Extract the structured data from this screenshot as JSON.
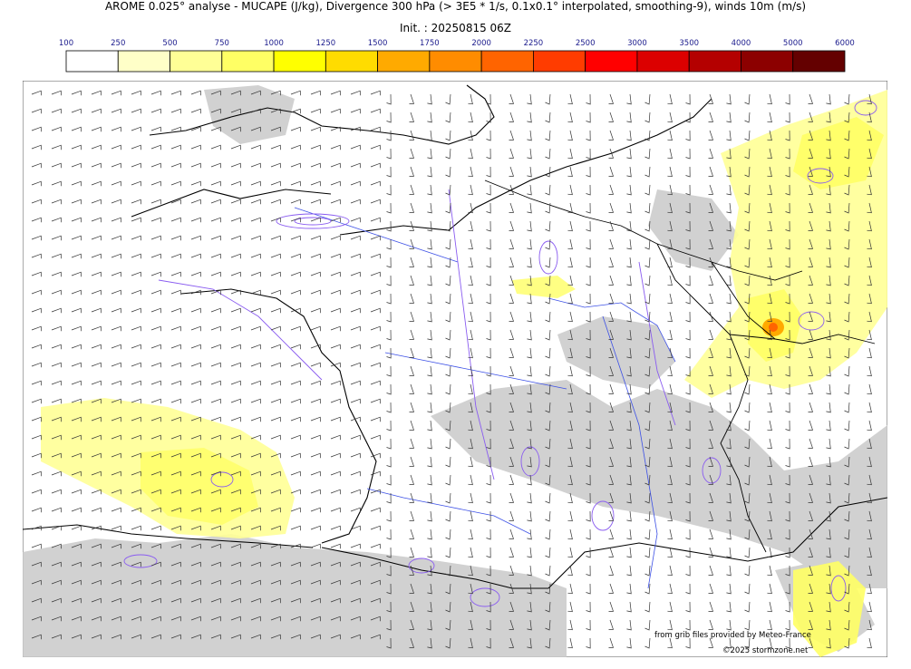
{
  "title": "AROME 0.025° analyse - MUCAPE (J/kg), Divergence 300 hPa (> 3E5 * 1/s, 0.1x0.1° interpolated, smoothing-9), winds 10m (m/s)",
  "subtitle": "Init. : 20250815 06Z",
  "colorbar": {
    "ticks": [
      "100",
      "250",
      "500",
      "750",
      "1000",
      "1250",
      "1500",
      "1750",
      "2000",
      "2250",
      "2500",
      "3000",
      "3500",
      "4000",
      "5000",
      "6000"
    ],
    "colors": [
      "#ffffff",
      "#ffffc8",
      "#ffff96",
      "#ffff64",
      "#ffff00",
      "#ffdc00",
      "#ffaa00",
      "#ff8c00",
      "#ff6400",
      "#ff3c00",
      "#ff0000",
      "#dc0000",
      "#b40000",
      "#8c0000",
      "#640000"
    ],
    "tick_color": "#1a1a8c"
  },
  "map": {
    "land_color": "#ffffff",
    "sea_color": "#ffffff",
    "cloud_color": "#c8c8c8",
    "divergence_color": "#8a5cf0",
    "river_color": "#3c50e6",
    "coast_color": "#000000"
  },
  "credits": {
    "line1": "from grib files provided by Meteo-France",
    "line2": "©2025 stormzone.net"
  }
}
